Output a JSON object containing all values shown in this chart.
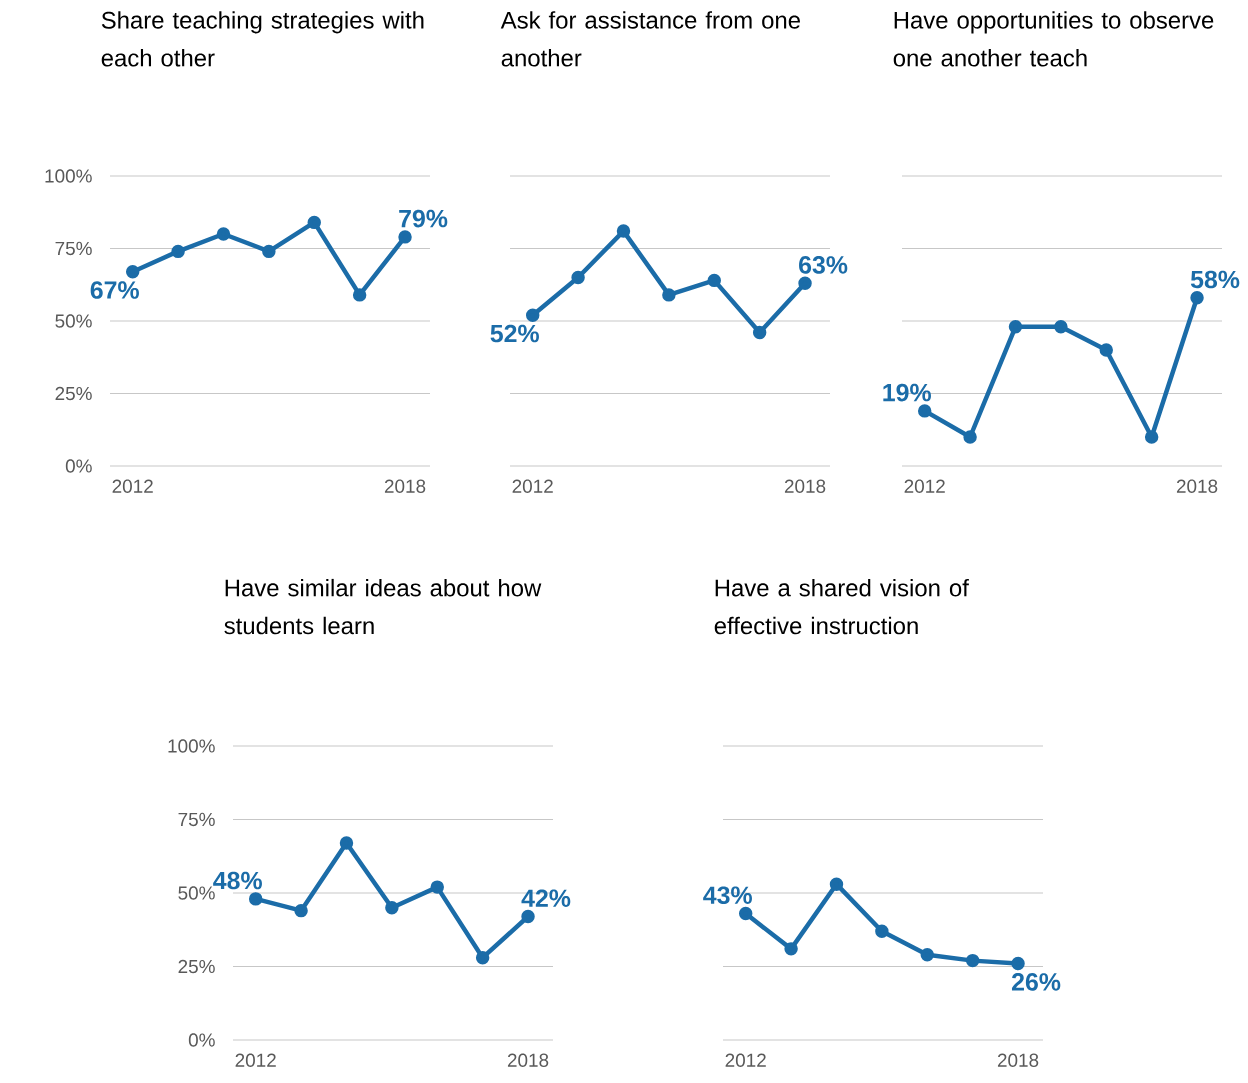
{
  "chart_data": [
    {
      "type": "line",
      "title": "Share teaching strategies with each other",
      "x": [
        2012,
        2013,
        2014,
        2015,
        2016,
        2017,
        2018
      ],
      "values": [
        67,
        74,
        80,
        74,
        84,
        59,
        79
      ],
      "value_labels": [
        "67%",
        null,
        null,
        null,
        null,
        null,
        "79%"
      ],
      "color": "#1b6ca8",
      "marker": "circle",
      "line_style": "solid",
      "grid": "y",
      "xlim": [
        2011.5,
        2018.55
      ],
      "ylim": [
        0,
        100
      ],
      "xticks": [
        2012,
        2018
      ],
      "yticks": [
        {
          "value": 0,
          "label": "0%"
        },
        {
          "value": 25,
          "label": "25%"
        },
        {
          "value": 50,
          "label": "50%"
        },
        {
          "value": 75,
          "label": "75%"
        },
        {
          "value": 100,
          "label": "100%"
        }
      ]
    },
    {
      "type": "line",
      "title": "Ask for assistance from one another",
      "x": [
        2012,
        2013,
        2014,
        2015,
        2016,
        2017,
        2018
      ],
      "values": [
        52,
        65,
        81,
        59,
        64,
        46,
        63
      ],
      "value_labels": [
        "52%",
        null,
        null,
        null,
        null,
        null,
        "63%"
      ],
      "color": "#1b6ca8",
      "marker": "circle",
      "line_style": "solid",
      "grid": "y",
      "tick_labels": "x",
      "xlim": [
        2011.5,
        2018.55
      ],
      "ylim": [
        0,
        100
      ],
      "xticks": [
        2012,
        2018
      ],
      "yticks": [
        0,
        25,
        50,
        75,
        100
      ]
    },
    {
      "type": "line",
      "title": "Have opportunities to observe one another teach",
      "x": [
        2012,
        2013,
        2014,
        2015,
        2016,
        2017,
        2018
      ],
      "values": [
        19,
        10,
        48,
        48,
        40,
        10,
        58
      ],
      "value_labels": [
        "19%",
        null,
        null,
        null,
        null,
        null,
        "58%"
      ],
      "color": "#1b6ca8",
      "marker": "circle",
      "line_style": "solid",
      "grid": "y",
      "tick_labels": "x",
      "xlim": [
        2011.5,
        2018.55
      ],
      "ylim": [
        0,
        100
      ],
      "xticks": [
        2012,
        2018
      ],
      "yticks": [
        0,
        25,
        50,
        75,
        100
      ]
    },
    {
      "type": "line",
      "title": "Have similar ideas about how students learn",
      "x": [
        2012,
        2013,
        2014,
        2015,
        2016,
        2017,
        2018
      ],
      "values": [
        48,
        44,
        67,
        45,
        52,
        28,
        42
      ],
      "value_labels": [
        "48%",
        null,
        null,
        null,
        null,
        null,
        "42%"
      ],
      "color": "#1b6ca8",
      "marker": "circle",
      "line_style": "solid",
      "grid": "y",
      "xlim": [
        2011.5,
        2018.55
      ],
      "ylim": [
        0,
        100
      ],
      "xticks": [
        2012,
        2018
      ],
      "yticks": [
        {
          "value": 0,
          "label": "0%"
        },
        {
          "value": 25,
          "label": "25%"
        },
        {
          "value": 50,
          "label": "50%"
        },
        {
          "value": 75,
          "label": "75%"
        },
        {
          "value": 100,
          "label": "100%"
        }
      ]
    },
    {
      "type": "line",
      "title": "Have a shared vision of effective instruction",
      "x": [
        2012,
        2013,
        2014,
        2015,
        2016,
        2017,
        2018
      ],
      "values": [
        43,
        31,
        53,
        37,
        29,
        27,
        26
      ],
      "value_labels": [
        "43%",
        null,
        null,
        null,
        null,
        null,
        "26%"
      ],
      "color": "#1b6ca8",
      "marker": "circle",
      "line_style": "solid",
      "grid": "y",
      "tick_labels": "x",
      "xlim": [
        2011.5,
        2018.55
      ],
      "ylim": [
        0,
        100
      ],
      "xticks": [
        2012,
        2018
      ],
      "yticks": [
        0,
        25,
        50,
        75,
        100
      ]
    }
  ]
}
